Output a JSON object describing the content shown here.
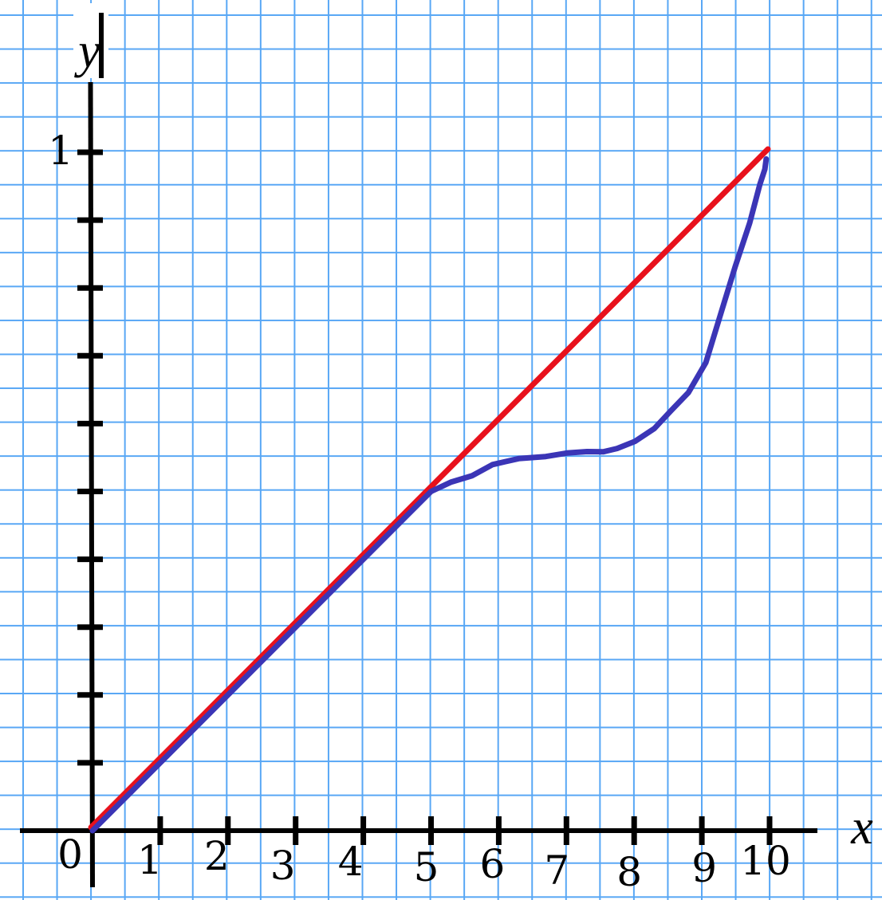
{
  "figure": {
    "y_axis_label": "y",
    "x_axis_label": "x",
    "y_unit_tick_label": "1",
    "origin_label": "0"
  },
  "colors": {
    "background": "#ffffff",
    "grid_line": "#58a7f5",
    "axis": "#000000",
    "reference_line": "#e8111c",
    "curve": "#3b35b6",
    "text": "#000000"
  },
  "chart_data": {
    "type": "line",
    "title": "",
    "xlabel": "x",
    "ylabel": "y",
    "xlim": [
      0,
      11.7
    ],
    "ylim": [
      0,
      1.23
    ],
    "grid": true,
    "legend": "none",
    "x_ticks": [
      1,
      2,
      3,
      4,
      5,
      6,
      7,
      8,
      9,
      10
    ],
    "x_tick_labels": [
      "1",
      "2",
      "3",
      "4",
      "5",
      "6",
      "7",
      "8",
      "9",
      "10"
    ],
    "y_ticks": [
      0.1,
      0.2,
      0.3,
      0.4,
      0.5,
      0.6,
      0.7,
      0.8,
      0.9,
      1.0
    ],
    "y_tick_labels": [
      "",
      "",
      "",
      "",
      "",
      "",
      "",
      "",
      "",
      "1"
    ],
    "series": [
      {
        "name": "straight reference line y = x/10",
        "color": "#e8111c",
        "style": "straight",
        "points": [
          [
            0,
            0
          ],
          [
            10,
            1
          ]
        ]
      },
      {
        "name": "curve: follows y = x/10 until x = 5, plateaus near 0.56, then rises steeply to (10, 1)",
        "color": "#3b35b6",
        "style": "hand-drawn",
        "points": [
          [
            0,
            0
          ],
          [
            5.0,
            0.5
          ],
          [
            5.3,
            0.512
          ],
          [
            5.6,
            0.524
          ],
          [
            5.9,
            0.54
          ],
          [
            6.3,
            0.547
          ],
          [
            6.7,
            0.553
          ],
          [
            7.0,
            0.556
          ],
          [
            7.3,
            0.558
          ],
          [
            7.55,
            0.56
          ],
          [
            7.75,
            0.562
          ],
          [
            8.0,
            0.574
          ],
          [
            8.3,
            0.594
          ],
          [
            8.55,
            0.617
          ],
          [
            8.8,
            0.647
          ],
          [
            9.05,
            0.69
          ],
          [
            9.3,
            0.766
          ],
          [
            9.5,
            0.833
          ],
          [
            9.7,
            0.895
          ],
          [
            9.85,
            0.952
          ],
          [
            9.93,
            0.975
          ],
          [
            9.95,
            0.99
          ]
        ]
      }
    ]
  }
}
